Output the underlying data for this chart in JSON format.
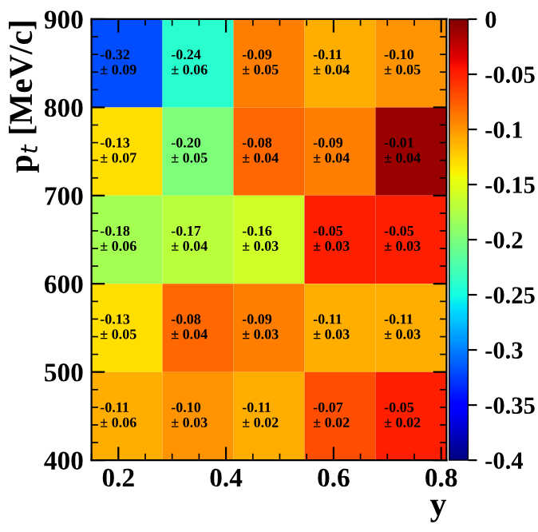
{
  "chart_data": {
    "type": "heatmap",
    "xlabel": "y",
    "ylabel": "p$_{t}$ [MeV/c]",
    "xlim": [
      0.15,
      0.81
    ],
    "xticks": [
      0.2,
      0.4,
      0.6,
      0.8
    ],
    "ylim": [
      400,
      900
    ],
    "yticks": [
      400,
      500,
      600,
      700,
      800,
      900
    ],
    "cells": [
      [
        -0.32,
        -0.24,
        -0.09,
        -0.11,
        -0.1
      ],
      [
        -0.13,
        -0.2,
        -0.08,
        -0.09,
        -0.01
      ],
      [
        -0.18,
        -0.17,
        -0.16,
        -0.05,
        -0.05
      ],
      [
        -0.13,
        -0.08,
        -0.09,
        -0.11,
        -0.11
      ],
      [
        -0.11,
        -0.1,
        -0.11,
        -0.07,
        -0.05
      ]
    ],
    "cell_labels": [
      [
        "-0.32\n± 0.09",
        "-0.24\n± 0.06",
        "-0.09\n± 0.05",
        "-0.11\n± 0.04",
        "-0.10\n± 0.05"
      ],
      [
        "-0.13\n± 0.07",
        "-0.20\n± 0.05",
        "-0.08\n± 0.04",
        "-0.09\n± 0.04",
        "-0.01\n± 0.04"
      ],
      [
        "-0.18\n± 0.06",
        "-0.17\n± 0.04",
        "-0.16\n± 0.03",
        "-0.05\n± 0.03",
        "-0.05\n± 0.03"
      ],
      [
        "-0.13\n± 0.05",
        "-0.08\n± 0.04",
        "-0.09\n± 0.03",
        "-0.11\n± 0.03",
        "-0.11\n± 0.03"
      ],
      [
        "-0.11\n± 0.06",
        "-0.10\n± 0.03",
        "-0.11\n± 0.02",
        "-0.07\n± 0.02",
        "-0.05\n± 0.02"
      ]
    ],
    "clim": [
      -0.4,
      0
    ],
    "cticks": [
      0,
      -0.05,
      -0.1,
      -0.15,
      -0.2,
      -0.25,
      -0.3,
      -0.35,
      -0.4
    ]
  }
}
